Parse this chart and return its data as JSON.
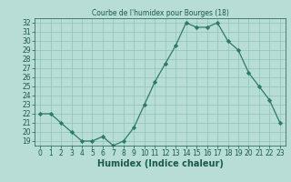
{
  "x": [
    0,
    1,
    2,
    3,
    4,
    5,
    6,
    7,
    8,
    9,
    10,
    11,
    12,
    13,
    14,
    15,
    16,
    17,
    18,
    19,
    20,
    21,
    22,
    23
  ],
  "y": [
    22,
    22,
    21,
    20,
    19,
    19,
    19.5,
    18.5,
    19,
    20.5,
    23,
    25.5,
    27.5,
    29.5,
    32,
    31.5,
    31.5,
    32,
    30,
    29,
    26.5,
    25,
    23.5,
    21
  ],
  "title": "Courbe de l'humidex pour Bourges (18)",
  "xlabel": "Humidex (Indice chaleur)",
  "ylabel": "",
  "ylim_min": 18.5,
  "ylim_max": 32.5,
  "xlim_min": -0.5,
  "xlim_max": 23.5,
  "yticks": [
    19,
    20,
    21,
    22,
    23,
    24,
    25,
    26,
    27,
    28,
    29,
    30,
    31,
    32
  ],
  "xticks": [
    0,
    1,
    2,
    3,
    4,
    5,
    6,
    7,
    8,
    9,
    10,
    11,
    12,
    13,
    14,
    15,
    16,
    17,
    18,
    19,
    20,
    21,
    22,
    23
  ],
  "line_color": "#2d7a6a",
  "marker": "D",
  "marker_size": 2.2,
  "bg_color": "#b8ddd6",
  "grid_color": "#8ec4bc",
  "label_color": "#1a5a4a",
  "tick_color": "#1a5a4a",
  "tick_fontsize": 5.5,
  "xlabel_fontsize": 7.0,
  "title_fontsize": 5.5
}
